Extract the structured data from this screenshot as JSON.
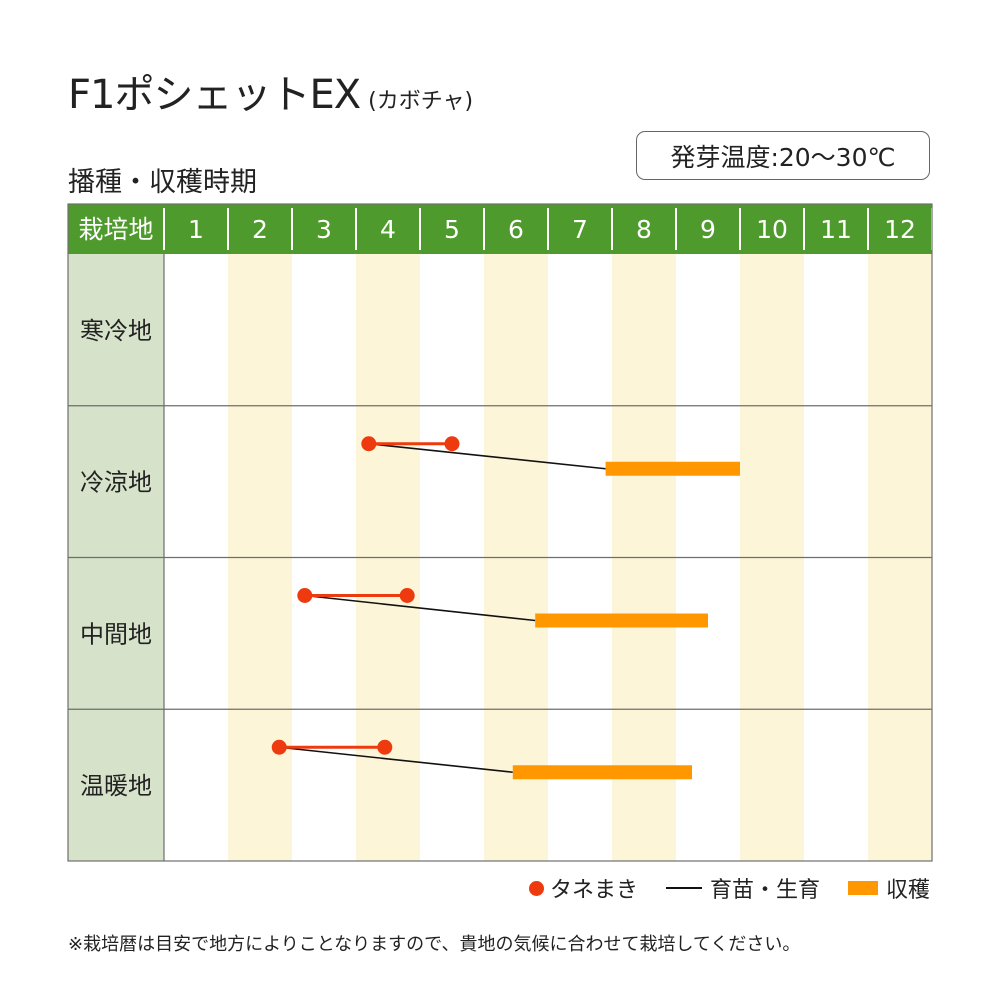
{
  "title": {
    "main": "F1ポシェットEX",
    "sub": "(カボチャ)"
  },
  "subtitle": "播種・収穫時期",
  "germination": "発芽温度:20～30℃",
  "colors": {
    "header": "#4e9a2c",
    "label_col": "#d6e2c9",
    "stripe": "#fdf5d8",
    "sowing": "#ee3a0f",
    "nursery": "#111111",
    "harvest": "#ff9800"
  },
  "chart_data": {
    "type": "table",
    "corner_label": "栽培地",
    "months": [
      "1",
      "2",
      "3",
      "4",
      "5",
      "6",
      "7",
      "8",
      "9",
      "10",
      "11",
      "12"
    ],
    "regions": [
      {
        "name": "寒冷地",
        "sowing": null,
        "harvest": null
      },
      {
        "name": "冷涼地",
        "sowing": [
          4.2,
          5.5
        ],
        "harvest": [
          7.9,
          10.0
        ]
      },
      {
        "name": "中間地",
        "sowing": [
          3.2,
          4.8
        ],
        "harvest": [
          6.8,
          9.5
        ]
      },
      {
        "name": "温暖地",
        "sowing": [
          2.8,
          4.45
        ],
        "harvest": [
          6.45,
          9.25
        ]
      }
    ]
  },
  "legend": {
    "sowing": "タネまき",
    "nursery": "育苗・生育",
    "harvest": "収穫"
  },
  "note": "※栽培暦は目安で地方によりことなりますので、貴地の気候に合わせて栽培してください。"
}
